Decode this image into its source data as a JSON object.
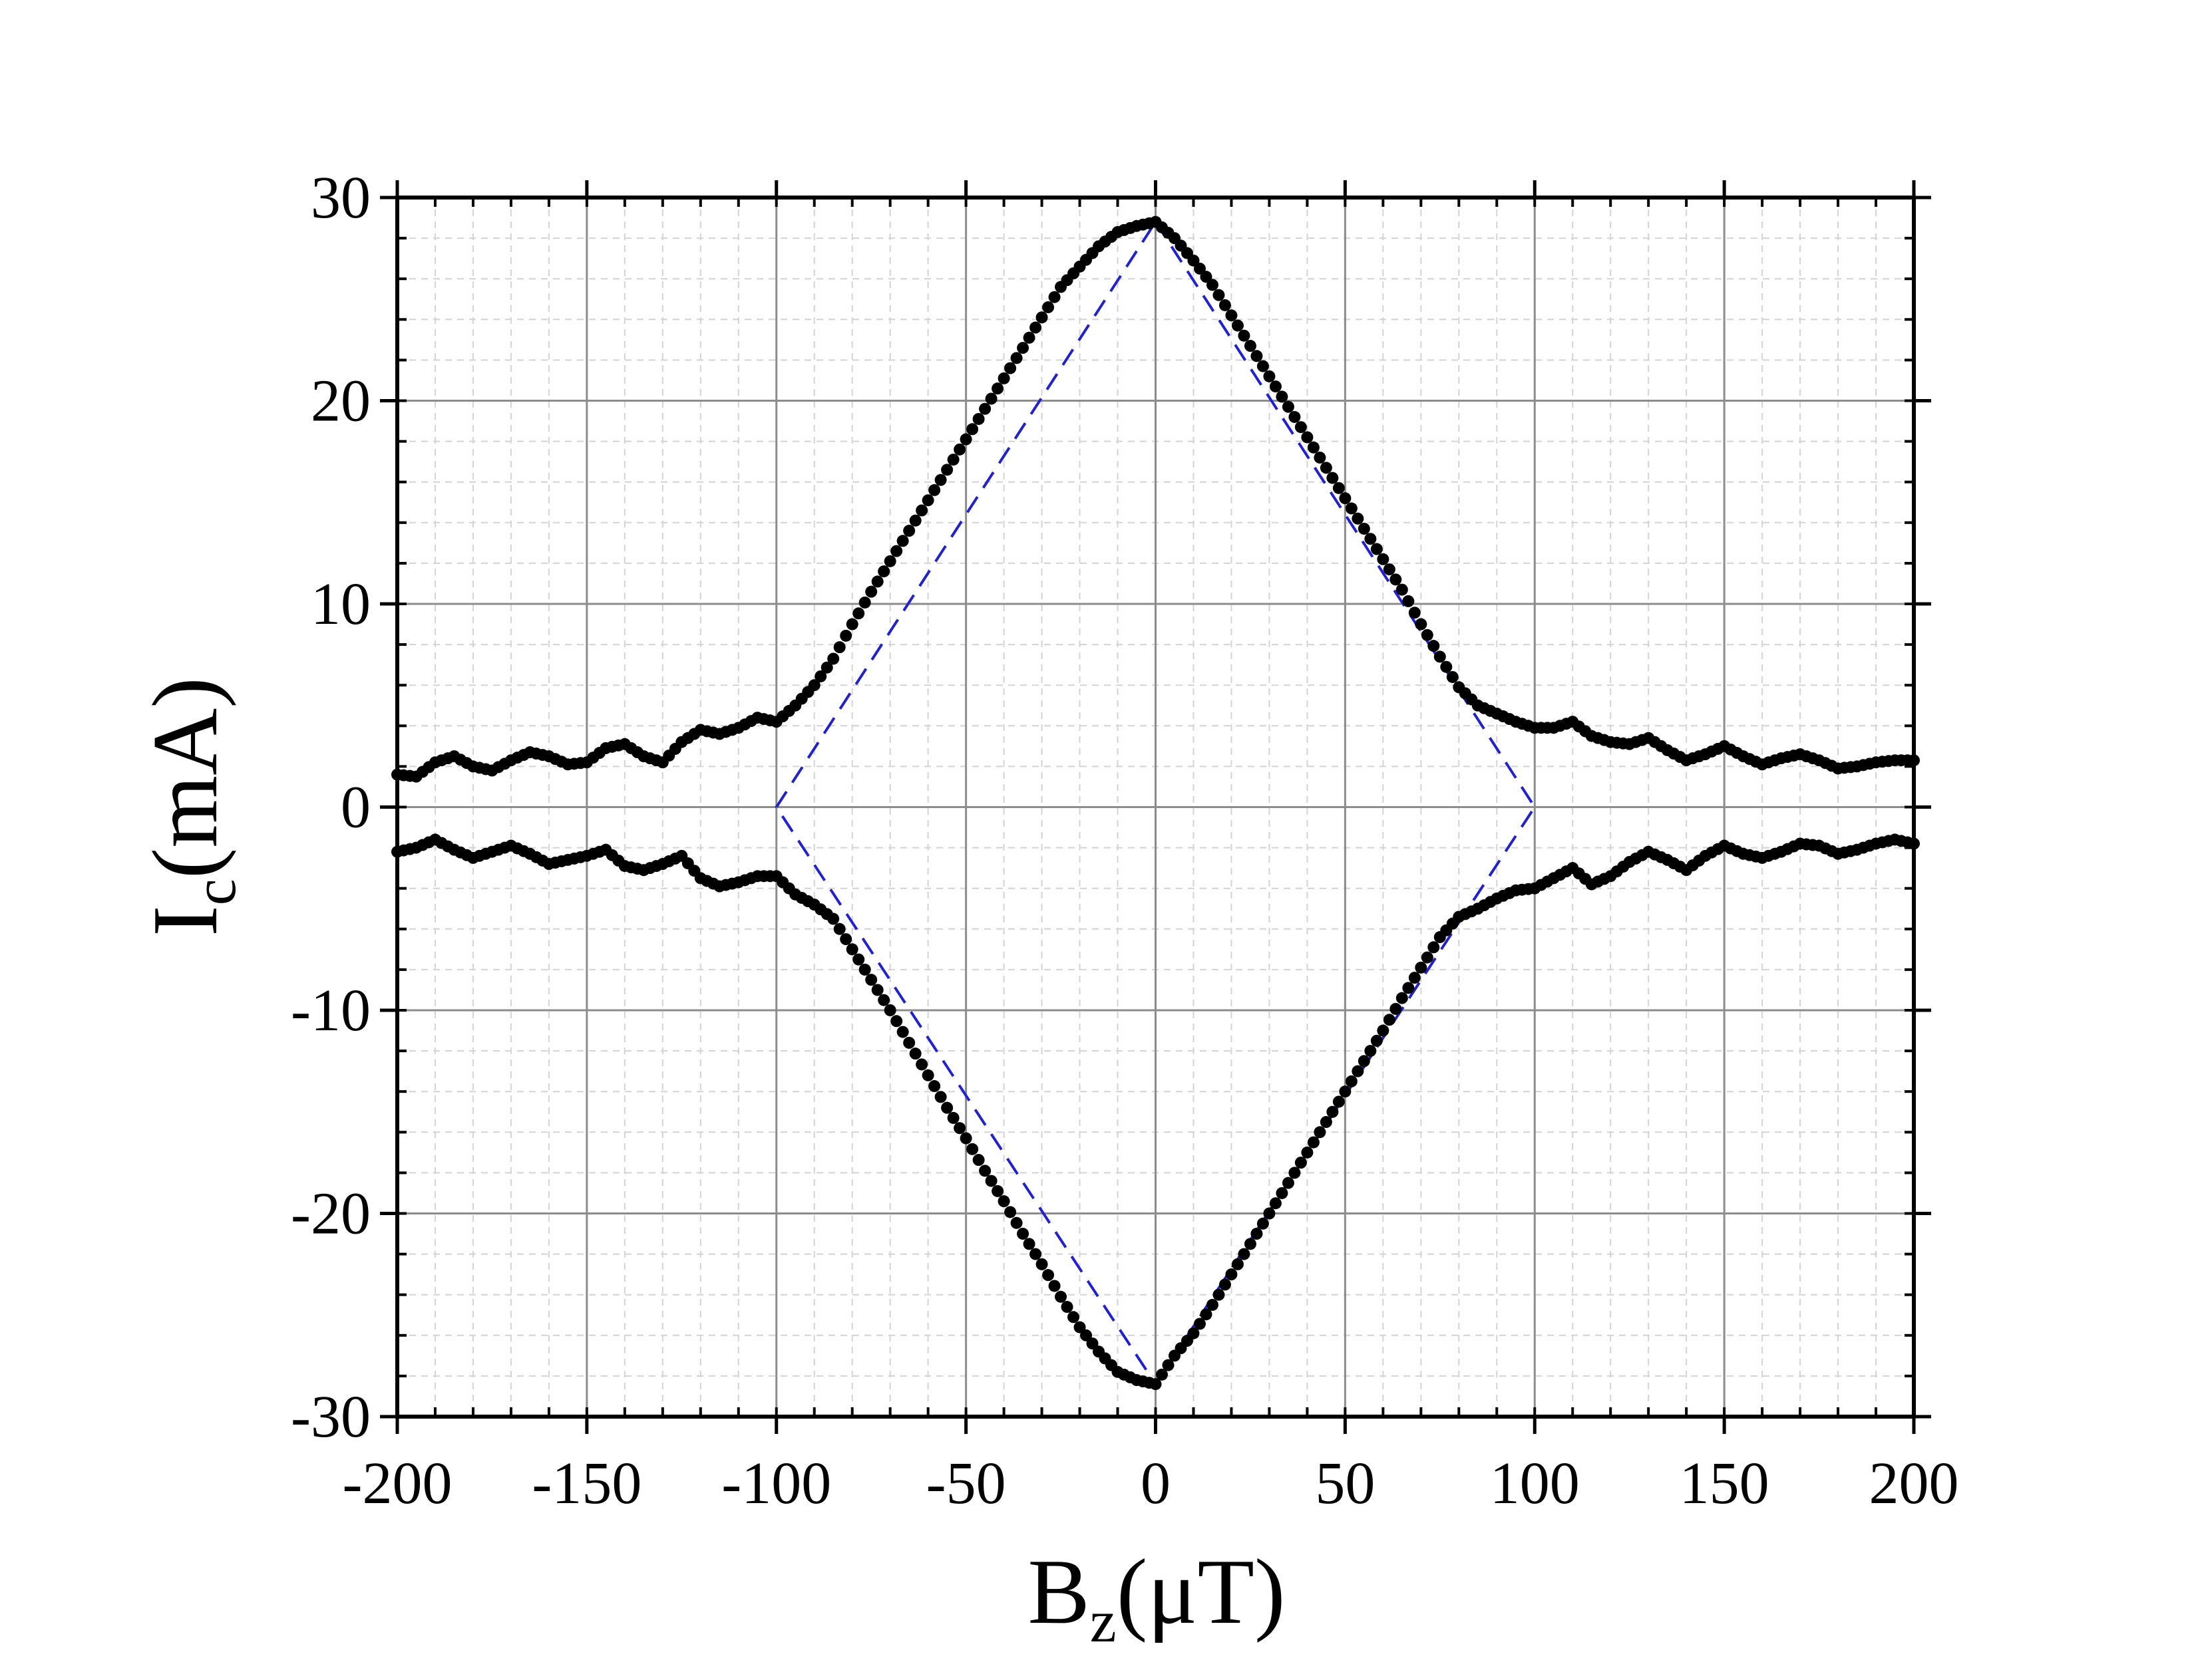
{
  "chart_data": {
    "type": "scatter",
    "xlabel": {
      "main": "B",
      "sub": "z",
      "unit": "(μT)"
    },
    "ylabel": {
      "main": "I",
      "sub": "c",
      "unit": "(mA)"
    },
    "xlim": [
      -200,
      200
    ],
    "ylim": [
      -30,
      30
    ],
    "x_ticks": [
      -200,
      -150,
      -100,
      -50,
      0,
      50,
      100,
      150,
      200
    ],
    "y_ticks": [
      -30,
      -20,
      -10,
      0,
      10,
      20,
      30
    ],
    "x_tick_labels": [
      "-200",
      "-150",
      "-100",
      "-50",
      "0",
      "50",
      "100",
      "150",
      "200"
    ],
    "y_tick_labels": [
      "-30",
      "-20",
      "-10",
      "0",
      "10",
      "20",
      "30"
    ],
    "grid": true,
    "legend": "none",
    "colors": {
      "points": "#000000",
      "envelope": "#1f1fdc",
      "major_grid": "#8c8c8c",
      "minor_grid": "#d4d4d4"
    },
    "series": [
      {
        "kind": "scatter",
        "description_key": "positive_branch",
        "x": [
          -200,
          -195,
          -190,
          -185,
          -180,
          -175,
          -170,
          -165,
          -160,
          -155,
          -150,
          -145,
          -140,
          -135,
          -130,
          -125,
          -120,
          -115,
          -110,
          -105,
          -100,
          -95,
          -90,
          -85,
          -80,
          -75,
          -70,
          -65,
          -60,
          -55,
          -50,
          -45,
          -40,
          -35,
          -30,
          -25,
          -20,
          -15,
          -10,
          -5,
          0,
          5,
          10,
          15,
          20,
          25,
          30,
          35,
          40,
          45,
          50,
          55,
          60,
          65,
          70,
          75,
          80,
          85,
          90,
          95,
          100,
          105,
          110,
          115,
          120,
          125,
          130,
          135,
          140,
          145,
          150,
          155,
          160,
          165,
          170,
          175,
          180,
          185,
          190,
          195,
          200
        ],
        "y": [
          1.6,
          1.5,
          2.2,
          2.5,
          2.0,
          1.8,
          2.3,
          2.7,
          2.5,
          2.1,
          2.2,
          2.9,
          3.1,
          2.5,
          2.2,
          3.2,
          3.8,
          3.6,
          3.9,
          4.4,
          4.2,
          5.0,
          6.0,
          7.3,
          9.0,
          10.6,
          12.1,
          13.6,
          15.1,
          16.6,
          18.1,
          19.6,
          21.1,
          22.6,
          24.1,
          25.6,
          26.6,
          27.6,
          28.3,
          28.6,
          28.8,
          28.0,
          26.9,
          25.7,
          24.2,
          22.7,
          21.2,
          19.7,
          18.2,
          16.7,
          15.2,
          13.7,
          12.2,
          10.7,
          9.0,
          7.4,
          5.9,
          5.0,
          4.6,
          4.2,
          3.9,
          3.9,
          4.2,
          3.5,
          3.2,
          3.1,
          3.4,
          2.8,
          2.3,
          2.6,
          3.0,
          2.5,
          2.1,
          2.4,
          2.6,
          2.3,
          1.9,
          2.0,
          2.2,
          2.3,
          2.3
        ]
      },
      {
        "kind": "scatter",
        "description_key": "negative_branch",
        "x": [
          -200,
          -195,
          -190,
          -185,
          -180,
          -175,
          -170,
          -165,
          -160,
          -155,
          -150,
          -145,
          -140,
          -135,
          -130,
          -125,
          -120,
          -115,
          -110,
          -105,
          -100,
          -95,
          -90,
          -85,
          -80,
          -75,
          -70,
          -65,
          -60,
          -55,
          -50,
          -45,
          -40,
          -35,
          -30,
          -25,
          -20,
          -15,
          -10,
          -5,
          0,
          5,
          10,
          15,
          20,
          25,
          30,
          35,
          40,
          45,
          50,
          55,
          60,
          65,
          70,
          75,
          80,
          85,
          90,
          95,
          100,
          105,
          110,
          115,
          120,
          125,
          130,
          135,
          140,
          145,
          150,
          155,
          160,
          165,
          170,
          175,
          180,
          185,
          190,
          195,
          200
        ],
        "y": [
          -2.2,
          -2.0,
          -1.6,
          -2.1,
          -2.5,
          -2.2,
          -1.9,
          -2.3,
          -2.8,
          -2.6,
          -2.4,
          -2.1,
          -2.9,
          -3.1,
          -2.8,
          -2.4,
          -3.5,
          -3.9,
          -3.7,
          -3.4,
          -3.4,
          -4.3,
          -4.8,
          -5.5,
          -7.0,
          -8.5,
          -10.0,
          -11.6,
          -13.2,
          -14.8,
          -16.3,
          -17.9,
          -19.4,
          -21.0,
          -22.5,
          -24.1,
          -25.6,
          -26.8,
          -27.8,
          -28.2,
          -28.4,
          -27.0,
          -25.9,
          -24.5,
          -23.0,
          -21.5,
          -20.0,
          -18.5,
          -17.0,
          -15.5,
          -14.0,
          -12.5,
          -11.0,
          -9.4,
          -7.9,
          -6.4,
          -5.4,
          -5.0,
          -4.5,
          -4.1,
          -4.0,
          -3.5,
          -3.0,
          -3.8,
          -3.4,
          -2.7,
          -2.2,
          -2.6,
          -3.1,
          -2.4,
          -1.9,
          -2.3,
          -2.5,
          -2.2,
          -1.8,
          -1.9,
          -2.3,
          -2.1,
          -1.8,
          -1.6,
          -1.8
        ]
      },
      {
        "kind": "line",
        "style": "dashed",
        "description_key": "envelope",
        "x": [
          0,
          100,
          0,
          -100,
          0
        ],
        "y": [
          28.8,
          0,
          -28.4,
          0,
          28.8
        ]
      }
    ]
  }
}
